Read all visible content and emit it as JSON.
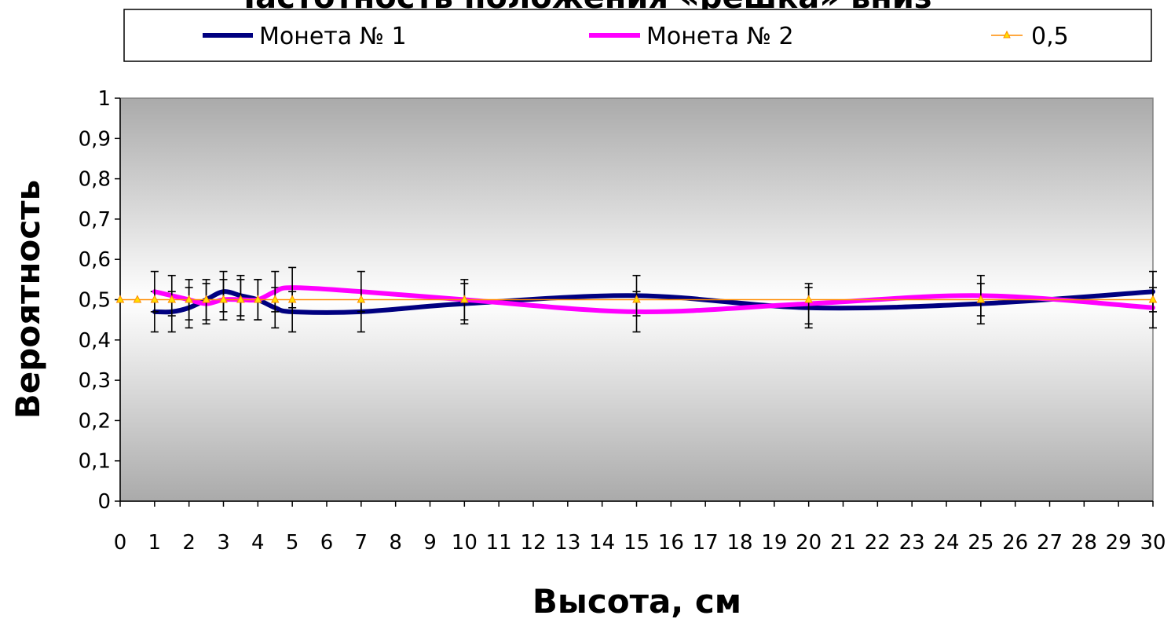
{
  "chart_data": {
    "type": "line",
    "title": "Частотность положения «решка» вниз",
    "xlabel": "Высота, см",
    "ylabel": "Вероятность",
    "xlim": [
      0,
      30
    ],
    "ylim": [
      0,
      1
    ],
    "x_ticks": [
      0,
      1,
      2,
      3,
      4,
      5,
      6,
      7,
      8,
      9,
      10,
      11,
      12,
      13,
      14,
      15,
      16,
      17,
      18,
      19,
      20,
      21,
      22,
      23,
      24,
      25,
      26,
      27,
      28,
      29,
      30
    ],
    "y_ticks": [
      0,
      0.1,
      0.2,
      0.3,
      0.4,
      0.5,
      0.6,
      0.7,
      0.8,
      0.9,
      1
    ],
    "y_tick_labels": [
      "0",
      "0,1",
      "0,2",
      "0,3",
      "0,4",
      "0,5",
      "0,6",
      "0,7",
      "0,8",
      "0,9",
      "1"
    ],
    "grid": false,
    "legend_position": "top",
    "background": "gray-gradient",
    "series": [
      {
        "name": "Монета № 1",
        "color": "#000080",
        "x": [
          1,
          1.5,
          2,
          2.5,
          3,
          3.5,
          4,
          4.5,
          5,
          7,
          10,
          15,
          20,
          25,
          30
        ],
        "y": [
          0.47,
          0.47,
          0.48,
          0.5,
          0.52,
          0.51,
          0.5,
          0.48,
          0.47,
          0.47,
          0.49,
          0.51,
          0.48,
          0.49,
          0.52
        ],
        "error": 0.05
      },
      {
        "name": "Монета № 2",
        "color": "#ff00ff",
        "x": [
          1,
          1.5,
          2,
          2.5,
          3,
          3.5,
          4,
          4.5,
          5,
          7,
          10,
          15,
          20,
          25,
          30
        ],
        "y": [
          0.52,
          0.51,
          0.5,
          0.49,
          0.5,
          0.5,
          0.5,
          0.52,
          0.53,
          0.52,
          0.5,
          0.47,
          0.49,
          0.51,
          0.48
        ],
        "error": 0.05
      },
      {
        "name": "0,5",
        "color": "#ff8c00",
        "marker": "triangle",
        "x": [
          0,
          0.5,
          1,
          1.5,
          2,
          2.5,
          3,
          3.5,
          4,
          4.5,
          5,
          7,
          10,
          15,
          20,
          25,
          30
        ],
        "y": [
          0.5,
          0.5,
          0.5,
          0.5,
          0.5,
          0.5,
          0.5,
          0.5,
          0.5,
          0.5,
          0.5,
          0.5,
          0.5,
          0.5,
          0.5,
          0.5,
          0.5
        ]
      }
    ]
  }
}
